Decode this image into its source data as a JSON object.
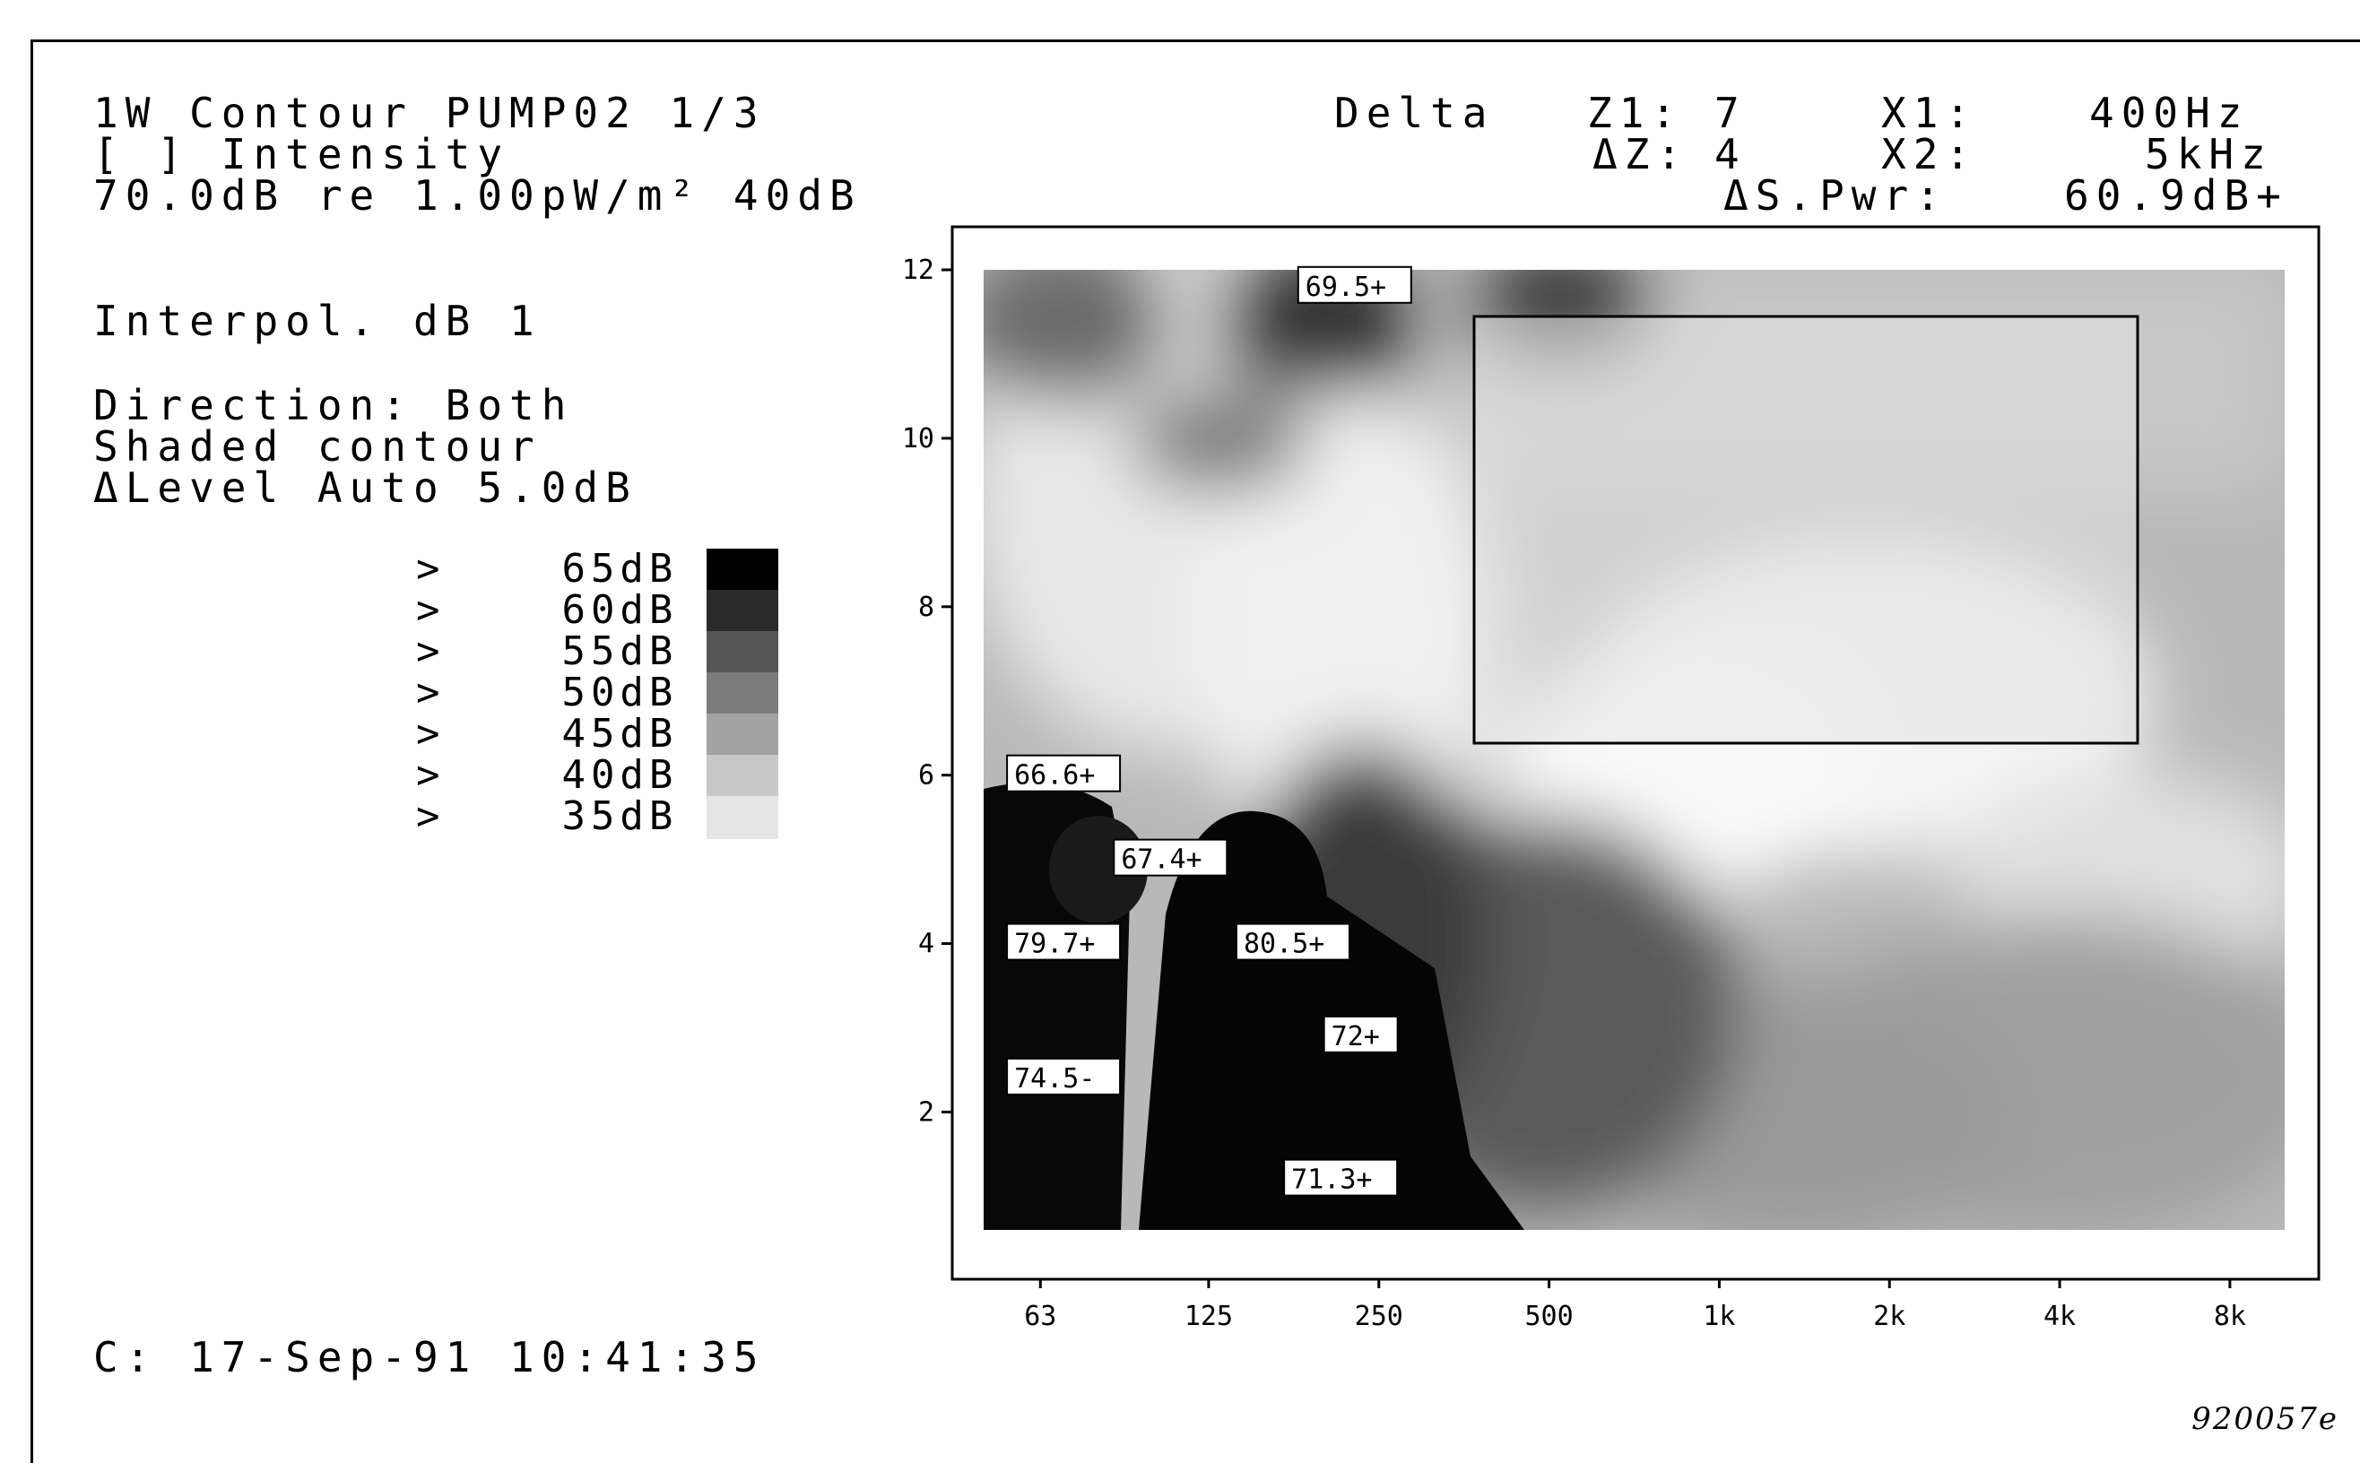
{
  "header": {
    "line1": "1W Contour PUMP02 1/3",
    "line2": "[ ] Intensity",
    "line3": "70.0dB re 1.00pW/m² 40dB"
  },
  "delta": {
    "label": "Delta",
    "z1_label": "Z1:",
    "z1_value": "7",
    "dz_label": "ΔZ:",
    "dz_value": "4",
    "x1_label": "X1:",
    "x1_value": "400Hz",
    "x2_label": "X2:",
    "x2_value": "5kHz",
    "spwr_label": "ΔS.Pwr:",
    "spwr_value": "60.9dB+"
  },
  "settings": {
    "interpol": "Interpol. dB 1",
    "direction": "Direction: Both",
    "shading": "Shaded contour",
    "level": "ΔLevel Auto 5.0dB"
  },
  "legend": [
    {
      "label": ">    65dB",
      "color": "#000000"
    },
    {
      "label": ">    60dB",
      "color": "#2a2a2a"
    },
    {
      "label": ">    55dB",
      "color": "#555555"
    },
    {
      "label": ">    50dB",
      "color": "#7c7c7c"
    },
    {
      "label": ">    45dB",
      "color": "#a3a3a3"
    },
    {
      "label": ">    40dB",
      "color": "#c8c8c8"
    },
    {
      "label": ">    35dB",
      "color": "#e6e6e6"
    }
  ],
  "timestamp": "C: 17-Sep-91 10:41:35",
  "figure_id": "920057e",
  "chart_data": {
    "type": "heatmap",
    "title": "",
    "xlabel": "",
    "ylabel": "",
    "x_scale": "log",
    "x_ticks": [
      "63",
      "125",
      "250",
      "500",
      "1k",
      "2k",
      "4k",
      "8k"
    ],
    "y_ticks": [
      "2",
      "4",
      "6",
      "8",
      "10",
      "12"
    ],
    "ylim": [
      0.6,
      12
    ],
    "xlim": [
      "50",
      "10k"
    ],
    "grid": false,
    "color_levels_dB": [
      65,
      60,
      55,
      50,
      45,
      40,
      35
    ],
    "selection_box": {
      "x1": "400Hz",
      "x2": "5kHz",
      "z1": 7,
      "z2": 11.5
    },
    "labels": [
      {
        "text": "69.5+",
        "x": "180",
        "y": 11.8
      },
      {
        "text": "66.6+",
        "x": "55",
        "y": 6.0
      },
      {
        "text": "67.4+",
        "x": "85",
        "y": 5.0
      },
      {
        "text": "79.7+",
        "x": "55",
        "y": 4.0
      },
      {
        "text": "80.5+",
        "x": "140",
        "y": 4.0
      },
      {
        "text": "72+",
        "x": "200",
        "y": 2.9
      },
      {
        "text": "74.5-",
        "x": "55",
        "y": 2.4
      },
      {
        "text": "71.3+",
        "x": "170",
        "y": 1.2
      }
    ]
  }
}
